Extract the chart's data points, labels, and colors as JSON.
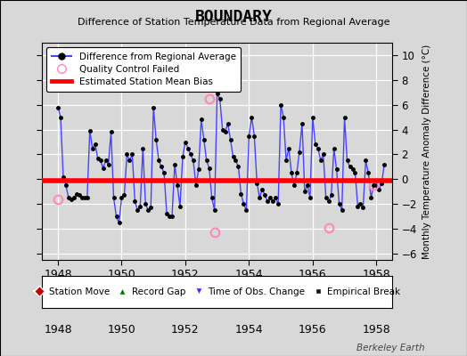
{
  "title": "BOUNDARY",
  "subtitle": "Difference of Station Temperature Data from Regional Average",
  "ylabel_right": "Monthly Temperature Anomaly Difference (°C)",
  "bias_value": -0.1,
  "xlim": [
    1947.5,
    1958.5
  ],
  "ylim": [
    -6.5,
    11.0
  ],
  "yticks": [
    -6,
    -4,
    -2,
    0,
    2,
    4,
    6,
    8,
    10
  ],
  "xticks": [
    1948,
    1950,
    1952,
    1954,
    1956,
    1958
  ],
  "bg_color": "#d8d8d8",
  "plot_bg_color": "#d8d8d8",
  "line_color": "#4444ff",
  "marker_color": "#000000",
  "bias_color": "#ff0000",
  "watermark": "Berkeley Earth",
  "qc_failed_color": "#ff88bb",
  "qc_failed_points": [
    [
      1948.0,
      -1.6
    ],
    [
      1952.75,
      6.5
    ],
    [
      1952.917,
      -4.3
    ],
    [
      1956.5,
      -3.9
    ],
    [
      1957.917,
      -0.5
    ]
  ],
  "data": [
    [
      1948.0,
      5.8
    ],
    [
      1948.083,
      5.0
    ],
    [
      1948.167,
      0.2
    ],
    [
      1948.25,
      -0.5
    ],
    [
      1948.333,
      -1.5
    ],
    [
      1948.417,
      -1.6
    ],
    [
      1948.5,
      -1.5
    ],
    [
      1948.583,
      -1.2
    ],
    [
      1948.667,
      -1.3
    ],
    [
      1948.75,
      -1.5
    ],
    [
      1948.833,
      -1.5
    ],
    [
      1948.917,
      -1.5
    ],
    [
      1949.0,
      3.9
    ],
    [
      1949.083,
      2.5
    ],
    [
      1949.167,
      2.8
    ],
    [
      1949.25,
      1.7
    ],
    [
      1949.333,
      1.5
    ],
    [
      1949.417,
      0.9
    ],
    [
      1949.5,
      1.5
    ],
    [
      1949.583,
      1.2
    ],
    [
      1949.667,
      3.8
    ],
    [
      1949.75,
      -1.5
    ],
    [
      1949.833,
      -3.0
    ],
    [
      1949.917,
      -3.5
    ],
    [
      1950.0,
      -1.5
    ],
    [
      1950.083,
      -1.3
    ],
    [
      1950.167,
      2.0
    ],
    [
      1950.25,
      1.5
    ],
    [
      1950.333,
      2.0
    ],
    [
      1950.417,
      -1.8
    ],
    [
      1950.5,
      -2.5
    ],
    [
      1950.583,
      -2.2
    ],
    [
      1950.667,
      2.5
    ],
    [
      1950.75,
      -2.0
    ],
    [
      1950.833,
      -2.5
    ],
    [
      1950.917,
      -2.3
    ],
    [
      1951.0,
      5.8
    ],
    [
      1951.083,
      3.2
    ],
    [
      1951.167,
      1.5
    ],
    [
      1951.25,
      1.0
    ],
    [
      1951.333,
      0.5
    ],
    [
      1951.417,
      -2.8
    ],
    [
      1951.5,
      -3.0
    ],
    [
      1951.583,
      -3.0
    ],
    [
      1951.667,
      1.2
    ],
    [
      1951.75,
      -0.5
    ],
    [
      1951.833,
      -2.2
    ],
    [
      1951.917,
      1.8
    ],
    [
      1952.0,
      3.0
    ],
    [
      1952.083,
      2.5
    ],
    [
      1952.167,
      2.0
    ],
    [
      1952.25,
      1.5
    ],
    [
      1952.333,
      -0.5
    ],
    [
      1952.417,
      0.8
    ],
    [
      1952.5,
      4.8
    ],
    [
      1952.583,
      3.2
    ],
    [
      1952.667,
      1.5
    ],
    [
      1952.75,
      0.9
    ],
    [
      1952.833,
      -1.5
    ],
    [
      1952.917,
      -2.5
    ],
    [
      1953.0,
      6.9
    ],
    [
      1953.083,
      6.5
    ],
    [
      1953.167,
      4.0
    ],
    [
      1953.25,
      3.8
    ],
    [
      1953.333,
      4.5
    ],
    [
      1953.417,
      3.2
    ],
    [
      1953.5,
      1.8
    ],
    [
      1953.583,
      1.5
    ],
    [
      1953.667,
      1.0
    ],
    [
      1953.75,
      -1.2
    ],
    [
      1953.833,
      -2.0
    ],
    [
      1953.917,
      -2.5
    ],
    [
      1954.0,
      3.5
    ],
    [
      1954.083,
      5.0
    ],
    [
      1954.167,
      3.5
    ],
    [
      1954.25,
      -0.3
    ],
    [
      1954.333,
      -1.5
    ],
    [
      1954.417,
      -0.8
    ],
    [
      1954.5,
      -1.3
    ],
    [
      1954.583,
      -1.8
    ],
    [
      1954.667,
      -1.5
    ],
    [
      1954.75,
      -1.8
    ],
    [
      1954.833,
      -1.5
    ],
    [
      1954.917,
      -2.0
    ],
    [
      1955.0,
      6.0
    ],
    [
      1955.083,
      5.0
    ],
    [
      1955.167,
      1.5
    ],
    [
      1955.25,
      2.5
    ],
    [
      1955.333,
      0.5
    ],
    [
      1955.417,
      -0.5
    ],
    [
      1955.5,
      0.5
    ],
    [
      1955.583,
      2.2
    ],
    [
      1955.667,
      4.5
    ],
    [
      1955.75,
      -1.0
    ],
    [
      1955.833,
      -0.5
    ],
    [
      1955.917,
      -1.5
    ],
    [
      1956.0,
      5.0
    ],
    [
      1956.083,
      2.8
    ],
    [
      1956.167,
      2.5
    ],
    [
      1956.25,
      1.5
    ],
    [
      1956.333,
      2.0
    ],
    [
      1956.417,
      -1.5
    ],
    [
      1956.5,
      -1.8
    ],
    [
      1956.583,
      -1.3
    ],
    [
      1956.667,
      2.5
    ],
    [
      1956.75,
      0.8
    ],
    [
      1956.833,
      -2.0
    ],
    [
      1956.917,
      -2.5
    ],
    [
      1957.0,
      5.0
    ],
    [
      1957.083,
      1.5
    ],
    [
      1957.167,
      1.0
    ],
    [
      1957.25,
      0.8
    ],
    [
      1957.333,
      0.5
    ],
    [
      1957.417,
      -2.2
    ],
    [
      1957.5,
      -2.0
    ],
    [
      1957.583,
      -2.3
    ],
    [
      1957.667,
      1.5
    ],
    [
      1957.75,
      0.5
    ],
    [
      1957.833,
      -1.5
    ],
    [
      1957.917,
      -0.5
    ],
    [
      1958.0,
      -0.5
    ],
    [
      1958.083,
      -0.8
    ],
    [
      1958.167,
      -0.3
    ],
    [
      1958.25,
      1.2
    ]
  ]
}
